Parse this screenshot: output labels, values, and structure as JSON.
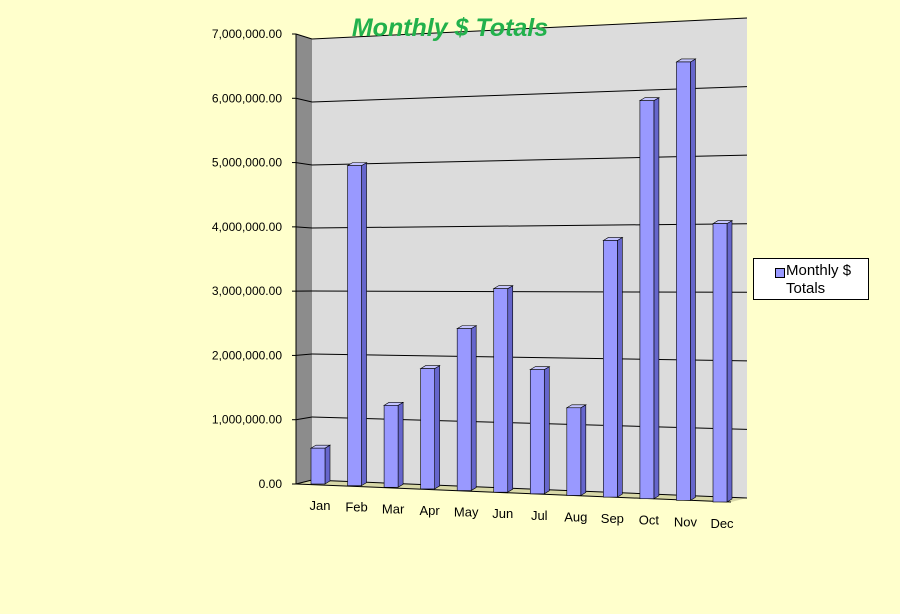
{
  "chart_data": {
    "type": "bar",
    "title": "Monthly $ Totals",
    "categories": [
      "Jan",
      "Feb",
      "Mar",
      "Apr",
      "May",
      "Jun",
      "Jul",
      "Aug",
      "Sep",
      "Oct",
      "Nov",
      "Dec"
    ],
    "series": [
      {
        "name": "Monthly $ Totals",
        "values": [
          560000,
          5000000,
          1280000,
          1880000,
          2530000,
          3180000,
          1940000,
          1370000,
          4010000,
          6220000,
          6850000,
          4350000
        ]
      }
    ],
    "yticks": [
      "0.00",
      "1,000,000.00",
      "2,000,000.00",
      "3,000,000.00",
      "4,000,000.00",
      "5,000,000.00",
      "6,000,000.00",
      "7,000,000.00"
    ],
    "ylim": [
      0,
      7000000
    ],
    "grid": true,
    "legend_position": "right",
    "colors": {
      "background": "#ffffcc",
      "plot_wall": "#dcdcdc",
      "side_wall": "#8c8c8c",
      "floor": "#d8d8a8",
      "bar_front": "#9999ff",
      "bar_side": "#6666cc",
      "bar_top": "#c4c4ff",
      "title": "#22b14c",
      "gridline": "#000000"
    }
  }
}
